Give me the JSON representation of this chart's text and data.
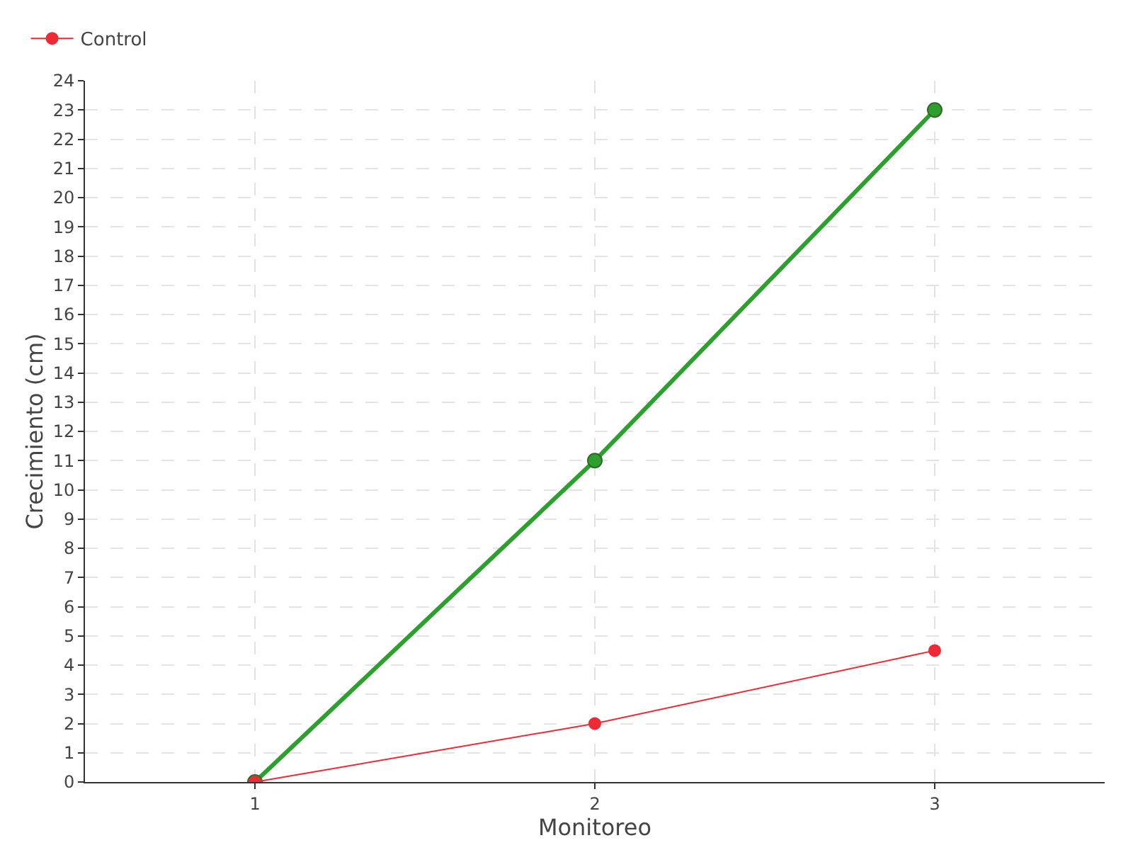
{
  "chart_data": {
    "type": "line",
    "xlabel": "Monitoreo",
    "ylabel": "Crecimiento (cm)",
    "x": [
      1,
      2,
      3
    ],
    "series": [
      {
        "color": "#2ca02c",
        "values": [
          0,
          11,
          23
        ]
      },
      {
        "name": "Control",
        "color": "#ee2a35",
        "values": [
          0,
          2,
          4.5
        ]
      }
    ],
    "xlim": [
      0.5,
      3.5
    ],
    "xticks": [
      1,
      2,
      3
    ],
    "ylim": [
      0,
      24
    ],
    "yticks": [
      0,
      1,
      2,
      3,
      4,
      5,
      6,
      7,
      8,
      9,
      10,
      11,
      12,
      13,
      14,
      15,
      16,
      17,
      18,
      19,
      20,
      21,
      22,
      23,
      24
    ],
    "grid": true,
    "legend": "top left",
    "marker": "circle",
    "line_style": "solid"
  }
}
